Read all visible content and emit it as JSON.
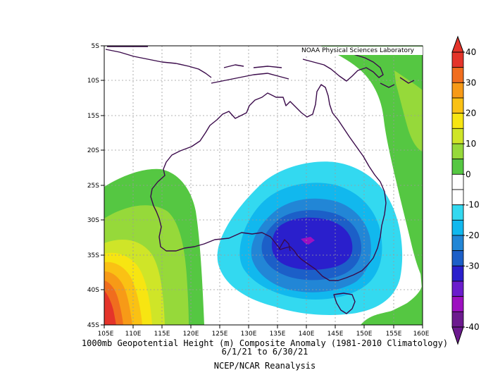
{
  "map": {
    "credit": "NOAA Physical Sciences Laboratory",
    "title": "1000mb Geopotential Height (m) Composite Anomaly (1981-2010 Climatology)",
    "dates": "6/1/21   to 6/30/21",
    "source": "NCEP/NCAR Reanalysis",
    "lat_labels": [
      "5S",
      "10S",
      "15S",
      "20S",
      "25S",
      "30S",
      "35S",
      "40S",
      "45S"
    ],
    "lon_labels": [
      "105E",
      "110E",
      "115E",
      "120E",
      "125E",
      "130E",
      "135E",
      "140E",
      "145E",
      "150E",
      "155E",
      "160E"
    ],
    "lat_range": [
      -45,
      -5
    ],
    "lon_range": [
      105,
      160
    ],
    "colorbar": {
      "labels": [
        "40",
        "30",
        "20",
        "10",
        "0",
        "-10",
        "-20",
        "-30",
        "-40"
      ],
      "colors": [
        "#e4342a",
        "#f06d1e",
        "#f79a17",
        "#fac114",
        "#f7e512",
        "#cfe528",
        "#96d93a",
        "#55c742",
        "#ffffff",
        "#ffffff",
        "#33d9f0",
        "#11b8ee",
        "#2286d6",
        "#1c5fc8",
        "#2a1fcc",
        "#6b1ccc",
        "#9d10c0",
        "#6c1a8e"
      ]
    }
  }
}
